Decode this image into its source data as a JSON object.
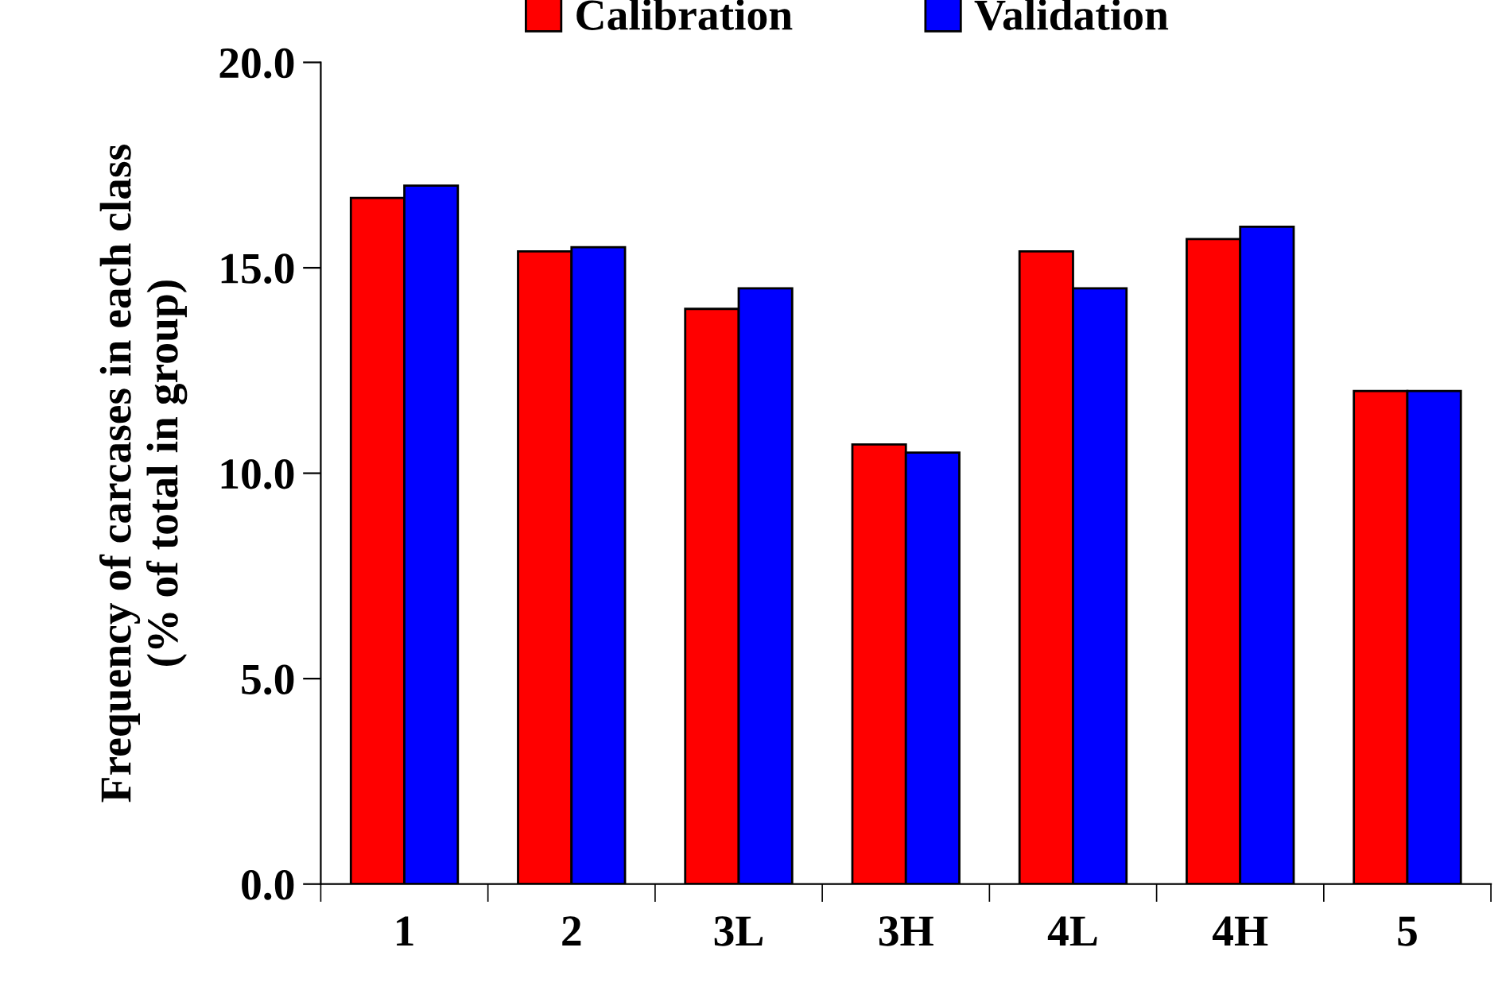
{
  "chart_data": {
    "type": "bar",
    "ylabel": "Frequency of carcases in each class\n(% of total in group)",
    "categories": [
      "1",
      "2",
      "3L",
      "3H",
      "4L",
      "4H",
      "5"
    ],
    "series": [
      {
        "name": "Calibration",
        "color": "#ff0000",
        "values": [
          16.7,
          15.4,
          14.0,
          10.7,
          15.4,
          15.7,
          12.0
        ]
      },
      {
        "name": "Validation",
        "color": "#0000ff",
        "values": [
          17.0,
          15.5,
          14.5,
          10.5,
          14.5,
          16.0,
          12.0
        ]
      }
    ],
    "ylim": [
      0,
      20
    ],
    "yticks": [
      {
        "value": 0,
        "label": "0.0"
      },
      {
        "value": 5,
        "label": "5.0"
      },
      {
        "value": 10,
        "label": "10.0"
      },
      {
        "value": 15,
        "label": "15.0"
      },
      {
        "value": 20,
        "label": "20.0"
      }
    ],
    "grid": false,
    "legend": "top"
  }
}
